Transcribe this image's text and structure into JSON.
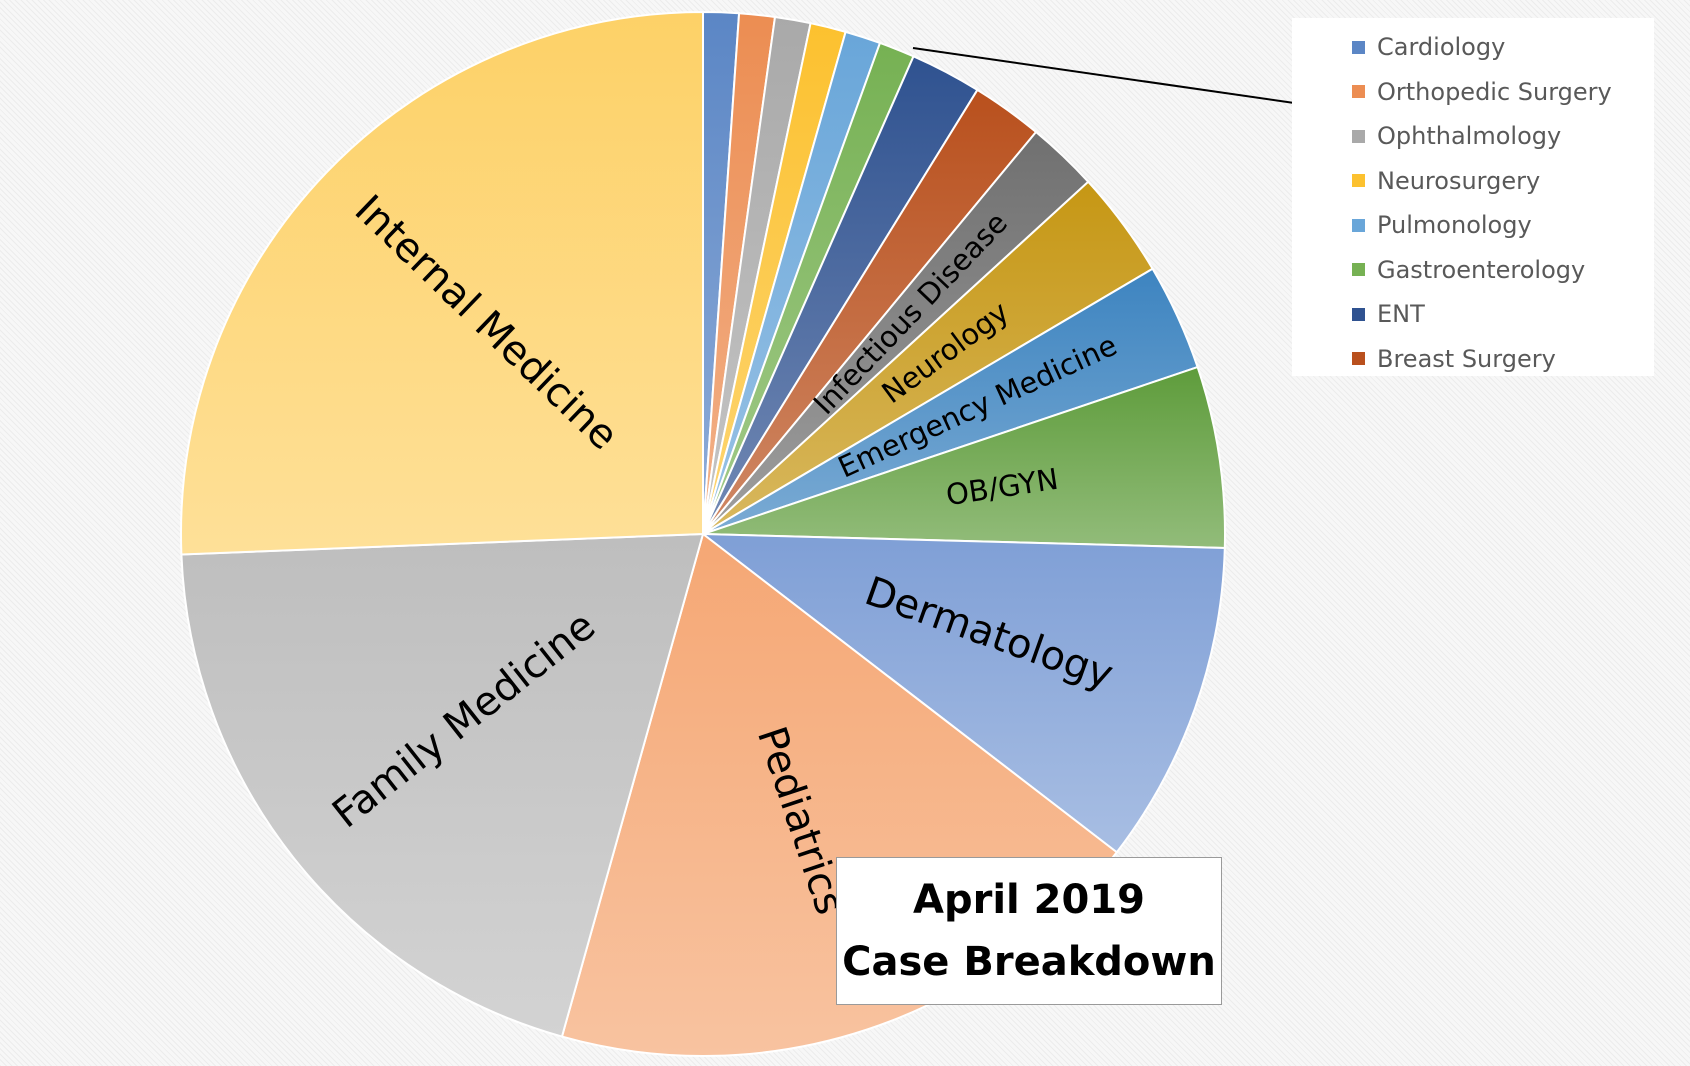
{
  "chart_data": {
    "type": "pie",
    "title": "April 2019 Case Breakdown",
    "title_lines": [
      "April 2019",
      "Case Breakdown"
    ],
    "legend_position": "top-right",
    "slices": [
      {
        "label": "Cardiology",
        "value": 1.1,
        "color": "#5b86c5",
        "show_label": false
      },
      {
        "label": "Orthopedic Surgery",
        "value": 1.1,
        "color": "#ec8d52",
        "show_label": false
      },
      {
        "label": "Ophthalmology",
        "value": 1.1,
        "color": "#a9a9a9",
        "show_label": false
      },
      {
        "label": "Neurosurgery",
        "value": 1.1,
        "color": "#fcc12f",
        "show_label": false
      },
      {
        "label": "Pulmonology",
        "value": 1.1,
        "color": "#69a6d9",
        "show_label": false
      },
      {
        "label": "Gastroenterology",
        "value": 1.1,
        "color": "#76b153",
        "show_label": false
      },
      {
        "label": "ENT",
        "value": 2.2,
        "color": "#2f5290",
        "show_label": false
      },
      {
        "label": "Breast Surgery",
        "value": 2.2,
        "color": "#b9501d",
        "show_label": false
      },
      {
        "label": "Infectious Disease",
        "value": 2.2,
        "color": "#707070",
        "show_label": true,
        "font_size": 29
      },
      {
        "label": "Neurology",
        "value": 3.3,
        "color": "#c69714",
        "show_label": true,
        "font_size": 29
      },
      {
        "label": "Emergency Medicine",
        "value": 3.3,
        "color": "#3d84c0",
        "show_label": true,
        "font_size": 29
      },
      {
        "label": "OB/GYN",
        "value": 5.6,
        "color": "#5e9c3b",
        "show_label": true,
        "font_size": 29
      },
      {
        "label": "Dermatology",
        "value": 10.0,
        "color": "#7f9fd6",
        "show_label": true,
        "font_size": 40
      },
      {
        "label": "Pediatrics",
        "value": 18.9,
        "color": "#f5a774",
        "show_label": true,
        "font_size": 40
      },
      {
        "label": "Family Medicine",
        "value": 20.0,
        "color": "#bebebe",
        "show_label": true,
        "font_size": 40
      },
      {
        "label": "Internal Medicine",
        "value": 25.6,
        "color": "#fdd167",
        "show_label": true,
        "font_size": 40
      }
    ]
  }
}
